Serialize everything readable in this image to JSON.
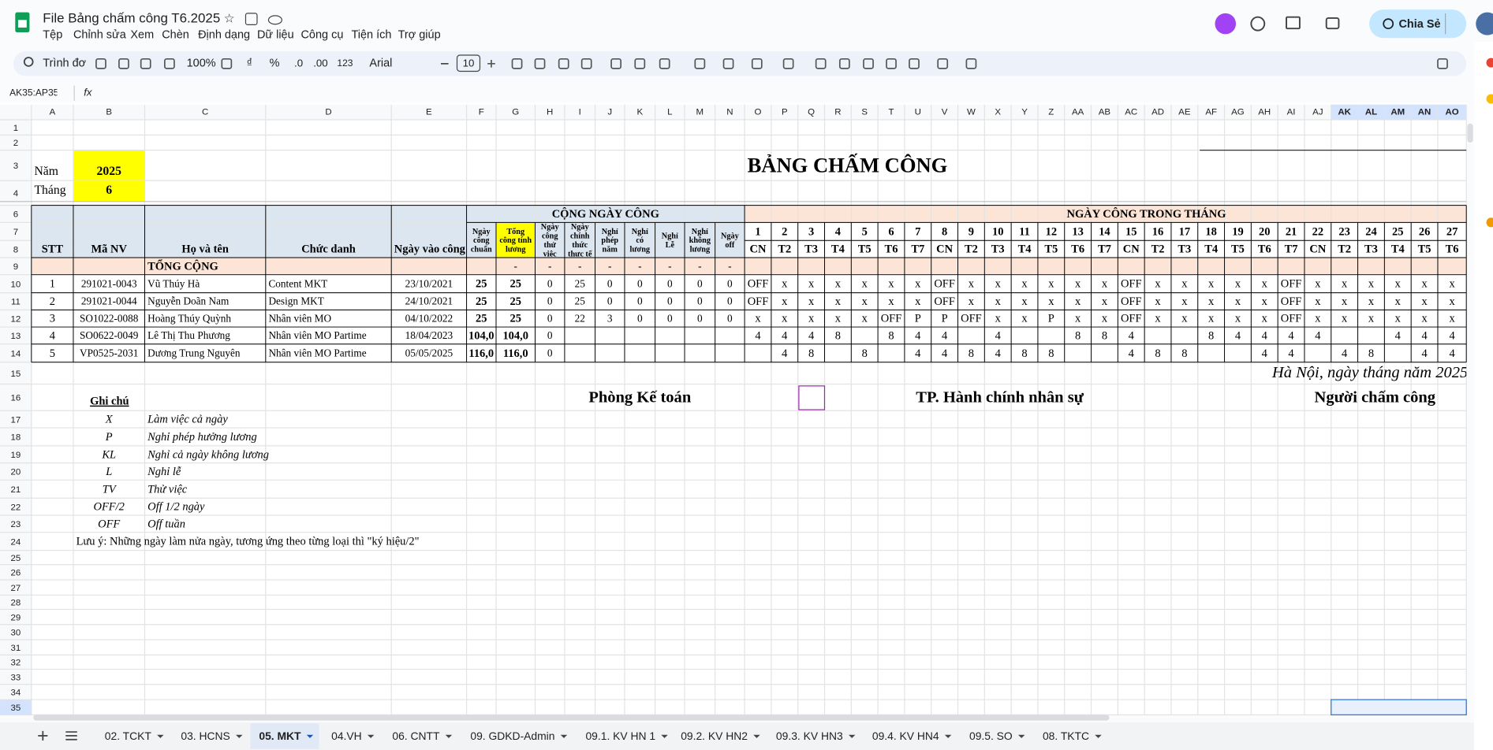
{
  "app": {
    "doc_title": "File Bảng chấm công T6.2025",
    "menu": [
      "Tệp",
      "Chỉnh sửa",
      "Xem",
      "Chèn",
      "Định dạng",
      "Dữ liệu",
      "Công cụ",
      "Tiện ích",
      "Trợ giúp"
    ],
    "share": "Chia Sẻ"
  },
  "toolbar": {
    "search": "Trình đơn",
    "zoom": "100%",
    "currency": "₫",
    "percent": "%",
    "dec_less": ".0",
    "dec_more": ".00",
    "number_format": "123",
    "font": "Arial",
    "font_size": "10"
  },
  "formula_bar": {
    "name_box": "AK35:AP35",
    "fx": "fx"
  },
  "columns": [
    "A",
    "B",
    "C",
    "D",
    "E",
    "F",
    "G",
    "H",
    "I",
    "J",
    "K",
    "L",
    "M",
    "N",
    "O",
    "P",
    "Q",
    "R",
    "S",
    "T",
    "U",
    "V",
    "W",
    "X",
    "Y",
    "Z",
    "AA",
    "AB",
    "AC",
    "AD",
    "AE",
    "AF",
    "AG",
    "AH",
    "AI",
    "AJ",
    "AK",
    "AL",
    "AM",
    "AN",
    "AO"
  ],
  "row_numbers": [
    "1",
    "2",
    "3",
    "4",
    "6",
    "7",
    "8",
    "9",
    "10",
    "11",
    "12",
    "13",
    "14",
    "15",
    "16",
    "17",
    "18",
    "19",
    "20",
    "21",
    "22",
    "23",
    "24",
    "25",
    "26",
    "27",
    "28",
    "29",
    "30",
    "31",
    "32",
    "33",
    "34",
    "35"
  ],
  "sheet": {
    "year_label": "Năm",
    "year": "2025",
    "month_label": "Tháng",
    "month": "6",
    "title": "BẢNG CHẤM CÔNG",
    "group_summary": "CỘNG NGÀY CÔNG",
    "group_days": "NGÀY CÔNG TRONG THÁNG",
    "headers": {
      "A": "STT",
      "B": "Mã NV",
      "C": "Họ và tên",
      "D": "Chức danh",
      "E": "Ngày vào công ty"
    },
    "header_lines": {
      "F": [
        "Ngày",
        "công",
        "chuẩn"
      ],
      "G": [
        "Tổng",
        "công tính",
        "lương"
      ],
      "H": [
        "Ngày",
        "công",
        "thử",
        "việc"
      ],
      "I": [
        "Ngày",
        "chính",
        "thức",
        "thực tế"
      ],
      "J": [
        "Nghỉ",
        "phép",
        "năm"
      ],
      "K": [
        "Nghỉ",
        "có",
        "lương"
      ],
      "L": [
        "Nghỉ",
        "Lễ"
      ],
      "M": [
        "Nghỉ",
        "không",
        "lương"
      ],
      "N": [
        "Ngày",
        "off"
      ]
    },
    "days": {
      "O": "1",
      "P": "2",
      "Q": "3",
      "R": "4",
      "S": "5",
      "T": "6",
      "U": "7",
      "V": "8",
      "W": "9",
      "X": "10",
      "Y": "11",
      "Z": "12",
      "AA": "13",
      "AB": "14",
      "AC": "15",
      "AD": "16",
      "AE": "17",
      "AF": "18",
      "AG": "19",
      "AH": "20",
      "AI": "21",
      "AJ": "22",
      "AK": "23",
      "AL": "24",
      "AM": "25",
      "AN": "26",
      "AO": "27"
    },
    "weekdays": {
      "O": "CN",
      "P": "T2",
      "Q": "T3",
      "R": "T4",
      "S": "T5",
      "T": "T6",
      "U": "T7",
      "V": "CN",
      "W": "T2",
      "X": "T3",
      "Y": "T4",
      "Z": "T5",
      "AA": "T6",
      "AB": "T7",
      "AC": "CN",
      "AD": "T2",
      "AE": "T3",
      "AF": "T4",
      "AG": "T5",
      "AH": "T6",
      "AI": "T7",
      "AJ": "CN",
      "AK": "T2",
      "AL": "T3",
      "AM": "T4",
      "AN": "T5",
      "AO": "T6"
    },
    "total_row": {
      "C": "TỔNG CỘNG",
      "G": "-",
      "H": "-",
      "I": "-",
      "J": "-",
      "K": "-",
      "L": "-",
      "M": "-",
      "N": "-"
    },
    "employees": [
      {
        "A": "1",
        "B": "291021-0043",
        "C": "Vũ Thúy Hà",
        "D": "Content MKT",
        "E": "23/10/2021",
        "F": "25",
        "G": "25",
        "H": "0",
        "I": "25",
        "J": "0",
        "K": "0",
        "L": "0",
        "M": "0",
        "N": "0",
        "O": "OFF",
        "P": "x",
        "Q": "x",
        "R": "x",
        "S": "x",
        "T": "x",
        "U": "x",
        "V": "OFF",
        "W": "x",
        "X": "x",
        "Y": "x",
        "Z": "x",
        "AA": "x",
        "AB": "x",
        "AC": "OFF",
        "AD": "x",
        "AE": "x",
        "AF": "x",
        "AG": "x",
        "AH": "x",
        "AI": "OFF",
        "AJ": "x",
        "AK": "x",
        "AL": "x",
        "AM": "x",
        "AN": "x",
        "AO": "x"
      },
      {
        "A": "2",
        "B": "291021-0044",
        "C": "Nguyễn Doãn Nam",
        "D": "Design MKT",
        "E": "24/10/2021",
        "F": "25",
        "G": "25",
        "H": "0",
        "I": "25",
        "J": "0",
        "K": "0",
        "L": "0",
        "M": "0",
        "N": "0",
        "O": "OFF",
        "P": "x",
        "Q": "x",
        "R": "x",
        "S": "x",
        "T": "x",
        "U": "x",
        "V": "OFF",
        "W": "x",
        "X": "x",
        "Y": "x",
        "Z": "x",
        "AA": "x",
        "AB": "x",
        "AC": "OFF",
        "AD": "x",
        "AE": "x",
        "AF": "x",
        "AG": "x",
        "AH": "x",
        "AI": "OFF",
        "AJ": "x",
        "AK": "x",
        "AL": "x",
        "AM": "x",
        "AN": "x",
        "AO": "x"
      },
      {
        "A": "3",
        "B": "SO1022-0088",
        "C": "Hoàng Thúy Quỳnh",
        "D": "Nhân viên MO",
        "E": "04/10/2022",
        "F": "25",
        "G": "25",
        "H": "0",
        "I": "22",
        "J": "3",
        "K": "0",
        "L": "0",
        "M": "0",
        "N": "0",
        "O": "x",
        "P": "x",
        "Q": "x",
        "R": "x",
        "S": "x",
        "T": "OFF",
        "U": "P",
        "V": "P",
        "W": "OFF",
        "X": "x",
        "Y": "x",
        "Z": "P",
        "AA": "x",
        "AB": "x",
        "AC": "OFF",
        "AD": "x",
        "AE": "x",
        "AF": "x",
        "AG": "x",
        "AH": "x",
        "AI": "OFF",
        "AJ": "x",
        "AK": "x",
        "AL": "x",
        "AM": "x",
        "AN": "x",
        "AO": "x"
      },
      {
        "A": "4",
        "B": "SO0622-0049",
        "C": "Lê Thị Thu Phương",
        "D": "Nhân viên MO Partime",
        "E": "18/04/2023",
        "F": "104,0",
        "G": "104,0",
        "H": "0",
        "O": "4",
        "P": "4",
        "Q": "4",
        "R": "8",
        "T": "8",
        "U": "4",
        "V": "4",
        "X": "4",
        "AA": "8",
        "AB": "8",
        "AC": "4",
        "AF": "8",
        "AG": "4",
        "AH": "4",
        "AI": "4",
        "AJ": "4",
        "AM": "4",
        "AN": "4",
        "AO": "4"
      },
      {
        "A": "5",
        "B": "VP0525-2031",
        "C": "Dương Trung Nguyên",
        "D": "Nhân viên MO Partime",
        "E": "05/05/2025",
        "F": "116,0",
        "G": "116,0",
        "H": "0",
        "P": "4",
        "Q": "8",
        "S": "8",
        "U": "4",
        "V": "4",
        "W": "8",
        "X": "4",
        "Y": "8",
        "Z": "8",
        "AC": "4",
        "AD": "8",
        "AE": "8",
        "AH": "4",
        "AI": "4",
        "AK": "4",
        "AL": "8",
        "AN": "4",
        "AO": "4"
      }
    ],
    "place_date": "Hà Nội, ngày tháng năm 2025",
    "sign_accounting": "Phòng Kế toán",
    "sign_hr": "TP. Hành chính nhân sự",
    "sign_timekeeper": "Người chấm công",
    "legend_title": "Ghi chú",
    "legend": [
      {
        "code": "X",
        "meaning": "Làm việc cả ngày"
      },
      {
        "code": "P",
        "meaning": "Nghỉ phép hưởng lương"
      },
      {
        "code": "KL",
        "meaning": "Nghỉ cả ngày không lương"
      },
      {
        "code": "L",
        "meaning": "Nghỉ lễ"
      },
      {
        "code": "TV",
        "meaning": "Thử việc"
      },
      {
        "code": "OFF/2",
        "meaning": "Off 1/2 ngày"
      },
      {
        "code": "OFF",
        "meaning": "Off tuần"
      }
    ],
    "note": "Lưu ý: Những ngày làm nửa ngày, tương ứng theo từng loại thì \"ký hiệu/2\""
  },
  "tabs": [
    {
      "label": "02. TCKT"
    },
    {
      "label": "03. HCNS"
    },
    {
      "label": "05. MKT",
      "active": true
    },
    {
      "label": "04.VH"
    },
    {
      "label": "06. CNTT"
    },
    {
      "label": "09. GDKD-Admin"
    },
    {
      "label": "09.1. KV HN 1"
    },
    {
      "label": "09.2. KV HN2"
    },
    {
      "label": "09.3. KV HN3"
    },
    {
      "label": "09.4. KV HN4"
    },
    {
      "label": "09.5. SO"
    },
    {
      "label": "08. TKTC"
    }
  ]
}
